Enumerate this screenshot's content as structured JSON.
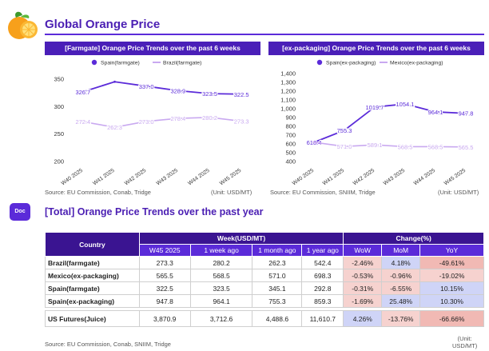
{
  "header": {
    "title": "Global Orange Price"
  },
  "chart_data": [
    {
      "type": "line",
      "title": "[Farmgate] Orange Price Trends over the past 6 weeks",
      "categories": [
        "W40 2025",
        "W41 2025",
        "W42 2025",
        "W43 2025",
        "W44 2025",
        "W45 2025"
      ],
      "series": [
        {
          "name": "Spain(farmgate)",
          "values": [
            326.7,
            345.1,
            337.0,
            328.9,
            323.5,
            322.5
          ],
          "labels": [
            "326.7",
            "",
            "337.0",
            "328.9",
            "323.5",
            "322.5"
          ],
          "color": "#5b2bd9"
        },
        {
          "name": "Brazil(farmgate)",
          "values": [
            272.4,
            262.3,
            273.0,
            278.4,
            280.2,
            273.3
          ],
          "labels": [
            "272.4",
            "262.3",
            "273.0",
            "278.4",
            "280.2",
            "273.3"
          ],
          "color": "#c9a9f0"
        }
      ],
      "yticks": [
        200,
        250,
        300,
        350
      ],
      "ylim": [
        200,
        360
      ],
      "source": "Source: EU Commission, Conab, Tridge",
      "unit": "(Unit: USD/MT)"
    },
    {
      "type": "line",
      "title": "[ex-packaging] Orange Price Trends over the past 6 weeks",
      "categories": [
        "W40 2025",
        "W41 2025",
        "W42 2025",
        "W43 2025",
        "W44 2025",
        "W45 2025"
      ],
      "series": [
        {
          "name": "Spain(ex-packaging)",
          "values": [
            618.4,
            755.3,
            1019.7,
            1054.1,
            964.1,
            947.8
          ],
          "labels": [
            "618.4",
            "755.3",
            "1019.7",
            "1054.1",
            "964.1",
            "947.8"
          ],
          "color": "#5b2bd9"
        },
        {
          "name": "Mexico(ex-packaging)",
          "values": [
            618.4,
            571.0,
            589.1,
            568.5,
            568.5,
            565.5
          ],
          "labels": [
            "",
            "571.0",
            "589.1",
            "568.5",
            "568.5",
            "565.5"
          ],
          "color": "#c9a9f0"
        }
      ],
      "yticks": [
        400,
        500,
        600,
        700,
        800,
        900,
        1000,
        1100,
        1200,
        1300,
        1400
      ],
      "ylim": [
        400,
        1400
      ],
      "source": "Source: EU Commission, SNIIM, Tridge",
      "unit": "(Unit: USD/MT)"
    }
  ],
  "section": {
    "badge": "Doc",
    "title": "[Total] Orange Price Trends over the past year"
  },
  "table": {
    "group_headers": {
      "country": "Country",
      "week": "Week(USD/MT)",
      "change": "Change(%)"
    },
    "sub_headers": [
      "W45 2025",
      "1 week ago",
      "1 month ago",
      "1 year ago",
      "WoW",
      "MoM",
      "YoY"
    ],
    "rows": [
      {
        "country": "Brazil(farmgate)",
        "w45": "273.3",
        "w1": "280.2",
        "m1": "262.3",
        "y1": "542.4",
        "wow": "-2.46%",
        "mom": "4.18%",
        "yoy": "-49.61%"
      },
      {
        "country": "Mexico(ex-packaging)",
        "w45": "565.5",
        "w1": "568.5",
        "m1": "571.0",
        "y1": "698.3",
        "wow": "-0.53%",
        "mom": "-0.96%",
        "yoy": "-19.02%"
      },
      {
        "country": "Spain(farmgate)",
        "w45": "322.5",
        "w1": "323.5",
        "m1": "345.1",
        "y1": "292.8",
        "wow": "-0.31%",
        "mom": "-6.55%",
        "yoy": "10.15%"
      },
      {
        "country": "Spain(ex-packaging)",
        "w45": "947.8",
        "w1": "964.1",
        "m1": "755.3",
        "y1": "859.3",
        "wow": "-1.69%",
        "mom": "25.48%",
        "yoy": "10.30%"
      }
    ],
    "futures": {
      "country": "US Futures(Juice)",
      "w45": "3,870.9",
      "w1": "3,712.6",
      "m1": "4,488.6",
      "y1": "11,610.7",
      "wow": "4.26%",
      "mom": "-13.76%",
      "yoy": "-66.66%"
    },
    "source": "Source: EU Commission, Conab, SNIIM, Tridge",
    "unit_line1": "(Unit:",
    "unit_line2": "USD/MT)"
  },
  "colors": {
    "accent": "#4b1fb3",
    "header_dark": "#3a1491",
    "series_dark": "#5b2bd9",
    "series_light": "#c9a9f0",
    "pos": "#cfd4f7",
    "neg": "#f6d2cf"
  },
  "icons": {
    "logo": "orange-fruit-icon"
  }
}
